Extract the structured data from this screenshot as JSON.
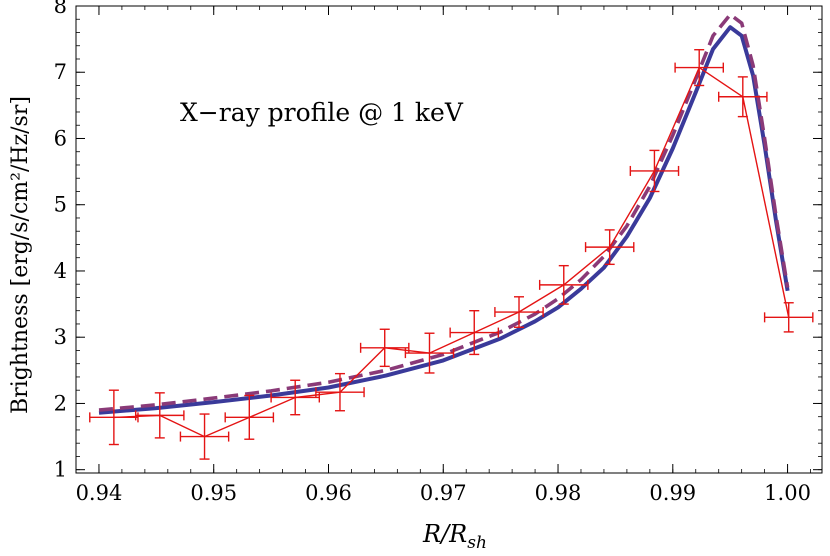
{
  "chart_data": {
    "type": "line",
    "annotation": "X−ray profile @ 1 keV",
    "ylabel": "Brightness [erg/s/cm²/Hz/sr]",
    "xlabel_main": "R/R",
    "xlabel_sub": "sh",
    "xlim": [
      0.938,
      1.003
    ],
    "ylim": [
      0.95,
      8.0
    ],
    "xticks": [
      0.94,
      0.95,
      0.96,
      0.97,
      0.98,
      0.99,
      1.0
    ],
    "xtick_labels": [
      "0.94",
      "0.95",
      "0.96",
      "0.97",
      "0.98",
      "0.99",
      "1.00"
    ],
    "yticks": [
      1,
      2,
      3,
      4,
      5,
      6,
      7,
      8
    ],
    "ytick_labels": [
      "1",
      "2",
      "3",
      "4",
      "5",
      "6",
      "7",
      "8"
    ],
    "colors": {
      "observed": "#e41414",
      "solid_model": "#3a3a9a",
      "dashed_model": "#8a3a78"
    },
    "series": [
      {
        "style": "solid-thick",
        "color_key": "solid_model",
        "x": [
          0.94,
          0.945,
          0.95,
          0.955,
          0.96,
          0.965,
          0.97,
          0.975,
          0.978,
          0.98,
          0.982,
          0.984,
          0.986,
          0.988,
          0.99,
          0.992,
          0.9935,
          0.995,
          0.996,
          0.997,
          0.998,
          0.999,
          1.0
        ],
        "y": [
          1.86,
          1.93,
          2.02,
          2.12,
          2.24,
          2.42,
          2.65,
          2.98,
          3.24,
          3.45,
          3.73,
          4.05,
          4.52,
          5.1,
          5.85,
          6.7,
          7.35,
          7.68,
          7.55,
          6.95,
          5.9,
          4.75,
          3.7
        ]
      },
      {
        "style": "dashed-thick",
        "color_key": "dashed_model",
        "x": [
          0.94,
          0.945,
          0.95,
          0.955,
          0.96,
          0.965,
          0.97,
          0.975,
          0.978,
          0.98,
          0.982,
          0.984,
          0.986,
          0.988,
          0.99,
          0.992,
          0.9935,
          0.995,
          0.996,
          0.997,
          0.998,
          0.999,
          1.0
        ],
        "y": [
          1.9,
          1.98,
          2.08,
          2.19,
          2.32,
          2.5,
          2.74,
          3.08,
          3.35,
          3.58,
          3.87,
          4.22,
          4.68,
          5.28,
          6.05,
          6.9,
          7.55,
          7.87,
          7.74,
          7.1,
          6.0,
          4.82,
          3.75
        ]
      },
      {
        "style": "errorbar-line",
        "color_key": "observed",
        "x": [
          0.9413,
          0.9453,
          0.9492,
          0.9531,
          0.9571,
          0.961,
          0.9649,
          0.9688,
          0.9727,
          0.9766,
          0.9805,
          0.9845,
          0.9884,
          0.9923,
          0.9961,
          1.0001
        ],
        "y": [
          1.79,
          1.82,
          1.5,
          1.79,
          2.09,
          2.17,
          2.84,
          2.76,
          3.07,
          3.38,
          3.79,
          4.36,
          5.51,
          7.07,
          6.63,
          3.3
        ],
        "xerr": [
          0.0021,
          0.0021,
          0.0021,
          0.0021,
          0.0021,
          0.0021,
          0.0021,
          0.0021,
          0.0021,
          0.0021,
          0.0021,
          0.0021,
          0.0021,
          0.0021,
          0.0021,
          0.0021
        ],
        "yerr": [
          0.41,
          0.34,
          0.34,
          0.33,
          0.26,
          0.28,
          0.28,
          0.3,
          0.33,
          0.23,
          0.29,
          0.26,
          0.31,
          0.27,
          0.3,
          0.22
        ]
      }
    ]
  }
}
